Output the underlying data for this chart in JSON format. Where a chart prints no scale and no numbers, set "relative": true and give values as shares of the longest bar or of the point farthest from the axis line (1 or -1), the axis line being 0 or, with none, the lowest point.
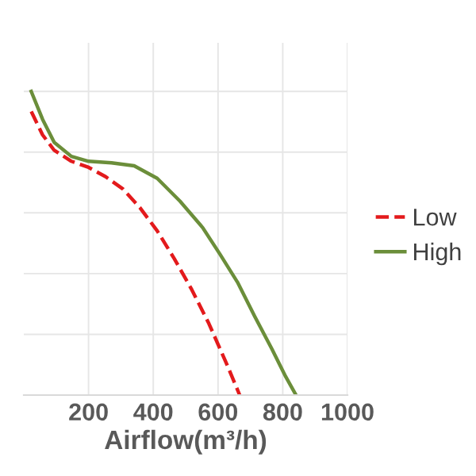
{
  "chart_data": {
    "type": "line",
    "xlabel": "Airflow(m³/h)",
    "relative": true,
    "xlim": [
      0,
      1000
    ],
    "xticks": [
      200,
      400,
      600,
      800,
      1000
    ],
    "grid": true,
    "legend": "right",
    "marker": "none",
    "series": [
      {
        "name": "Low",
        "color": "#e31a1c",
        "line_style": "dashed",
        "x": [
          23,
          58,
          94,
          147,
          200,
          253,
          306,
          359,
          412,
          465,
          519,
          572,
          625,
          667
        ],
        "values": [
          0.934,
          0.857,
          0.806,
          0.77,
          0.75,
          0.719,
          0.679,
          0.617,
          0.541,
          0.449,
          0.347,
          0.235,
          0.107,
          0
        ]
      },
      {
        "name": "High",
        "color": "#6b8e3a",
        "line_style": "solid",
        "x": [
          23,
          58,
          94,
          147,
          200,
          271,
          341,
          412,
          483,
          553,
          606,
          660,
          713,
          766,
          809,
          841
        ],
        "values": [
          1,
          0.908,
          0.832,
          0.786,
          0.77,
          0.765,
          0.755,
          0.714,
          0.638,
          0.551,
          0.464,
          0.372,
          0.26,
          0.153,
          0.061,
          0
        ]
      }
    ]
  }
}
